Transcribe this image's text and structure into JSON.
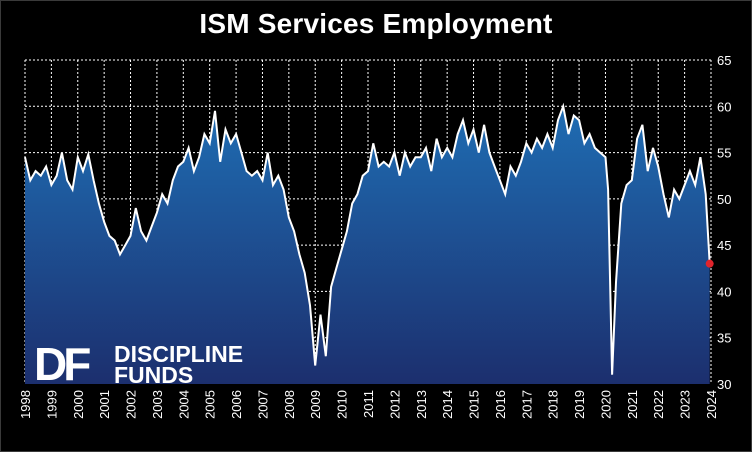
{
  "chart_data": {
    "type": "area",
    "title": "ISM Services Employment",
    "xlabel": "",
    "ylabel": "",
    "ylim": [
      30,
      65
    ],
    "xlim": [
      1998.0,
      2024.0
    ],
    "yticks": [
      30,
      35,
      40,
      45,
      50,
      55,
      60,
      65
    ],
    "xticks": [
      "1998",
      "1999",
      "2000",
      "2001",
      "2002",
      "2003",
      "2004",
      "2005",
      "2006",
      "2007",
      "2008",
      "2009",
      "2010",
      "2011",
      "2012",
      "2013",
      "2014",
      "2015",
      "2016",
      "2017",
      "2018",
      "2019",
      "2020",
      "2021",
      "2022",
      "2023",
      "2024"
    ],
    "grid": true,
    "series": [
      {
        "x": [
          1998.0,
          1998.2,
          1998.4,
          1998.6,
          1998.8,
          1999.0,
          1999.2,
          1999.4,
          1999.6,
          1999.8,
          2000.0,
          2000.2,
          2000.4,
          2000.6,
          2000.8,
          2001.0,
          2001.2,
          2001.4,
          2001.6,
          2001.8,
          2002.0,
          2002.2,
          2002.4,
          2002.6,
          2002.8,
          2003.0,
          2003.2,
          2003.4,
          2003.6,
          2003.8,
          2004.0,
          2004.2,
          2004.4,
          2004.6,
          2004.8,
          2005.0,
          2005.2,
          2005.4,
          2005.6,
          2005.8,
          2006.0,
          2006.2,
          2006.4,
          2006.6,
          2006.8,
          2007.0,
          2007.2,
          2007.4,
          2007.6,
          2007.8,
          2008.0,
          2008.2,
          2008.4,
          2008.6,
          2008.8,
          2009.0,
          2009.2,
          2009.4,
          2009.6,
          2009.8,
          2010.0,
          2010.2,
          2010.4,
          2010.6,
          2010.8,
          2011.0,
          2011.2,
          2011.4,
          2011.6,
          2011.8,
          2012.0,
          2012.2,
          2012.4,
          2012.6,
          2012.8,
          2013.0,
          2013.2,
          2013.4,
          2013.6,
          2013.8,
          2014.0,
          2014.2,
          2014.4,
          2014.6,
          2014.8,
          2015.0,
          2015.2,
          2015.4,
          2015.6,
          2015.8,
          2016.0,
          2016.2,
          2016.4,
          2016.6,
          2016.8,
          2017.0,
          2017.2,
          2017.4,
          2017.6,
          2017.8,
          2018.0,
          2018.2,
          2018.4,
          2018.6,
          2018.8,
          2019.0,
          2019.2,
          2019.4,
          2019.6,
          2019.8,
          2020.0,
          2020.1,
          2020.25,
          2020.4,
          2020.6,
          2020.8,
          2021.0,
          2021.2,
          2021.4,
          2021.6,
          2021.8,
          2022.0,
          2022.2,
          2022.4,
          2022.6,
          2022.8,
          2023.0,
          2023.2,
          2023.4,
          2023.6,
          2023.8,
          2023.95
        ],
        "values": [
          54.5,
          52.0,
          53.0,
          52.5,
          53.5,
          51.5,
          52.5,
          55.0,
          52.0,
          51.0,
          54.5,
          53.0,
          54.8,
          52.0,
          49.5,
          47.5,
          46.0,
          45.5,
          44.0,
          45.0,
          46.0,
          49.0,
          46.5,
          45.5,
          47.0,
          48.5,
          50.5,
          49.5,
          52.0,
          53.5,
          54.0,
          55.5,
          53.0,
          54.5,
          57.0,
          56.0,
          59.5,
          54.0,
          57.5,
          56.0,
          57.0,
          55.0,
          53.0,
          52.5,
          53.0,
          52.0,
          55.0,
          51.5,
          52.5,
          51.0,
          48.0,
          46.5,
          44.0,
          42.0,
          38.5,
          32.0,
          37.5,
          33.0,
          40.5,
          42.5,
          44.5,
          46.5,
          49.5,
          50.5,
          52.5,
          53.0,
          56.0,
          53.5,
          54.0,
          53.5,
          55.0,
          52.5,
          55.0,
          53.5,
          54.5,
          54.5,
          55.5,
          53.0,
          56.5,
          54.5,
          55.5,
          54.5,
          57.0,
          58.5,
          56.0,
          57.5,
          55.0,
          58.0,
          55.0,
          53.5,
          52.0,
          50.5,
          53.5,
          52.5,
          54.0,
          56.0,
          55.0,
          56.5,
          55.5,
          57.0,
          55.5,
          58.5,
          60.0,
          57.0,
          59.0,
          58.5,
          56.0,
          57.0,
          55.5,
          55.0,
          54.5,
          51.0,
          31.0,
          41.0,
          49.5,
          51.5,
          52.0,
          56.5,
          58.0,
          53.0,
          55.5,
          53.5,
          50.5,
          48.0,
          51.0,
          50.0,
          51.5,
          53.0,
          51.5,
          54.5,
          50.5,
          43.0
        ]
      }
    ],
    "last_point_color": "#e0242c",
    "line_color": "#ffffff",
    "fill_top_color": "#1f6db3",
    "fill_bottom_color": "#1c2f6e"
  },
  "branding": {
    "logo_mark": "DF",
    "logo_line1": "DISCIPLINE",
    "logo_line2": "FUNDS"
  }
}
